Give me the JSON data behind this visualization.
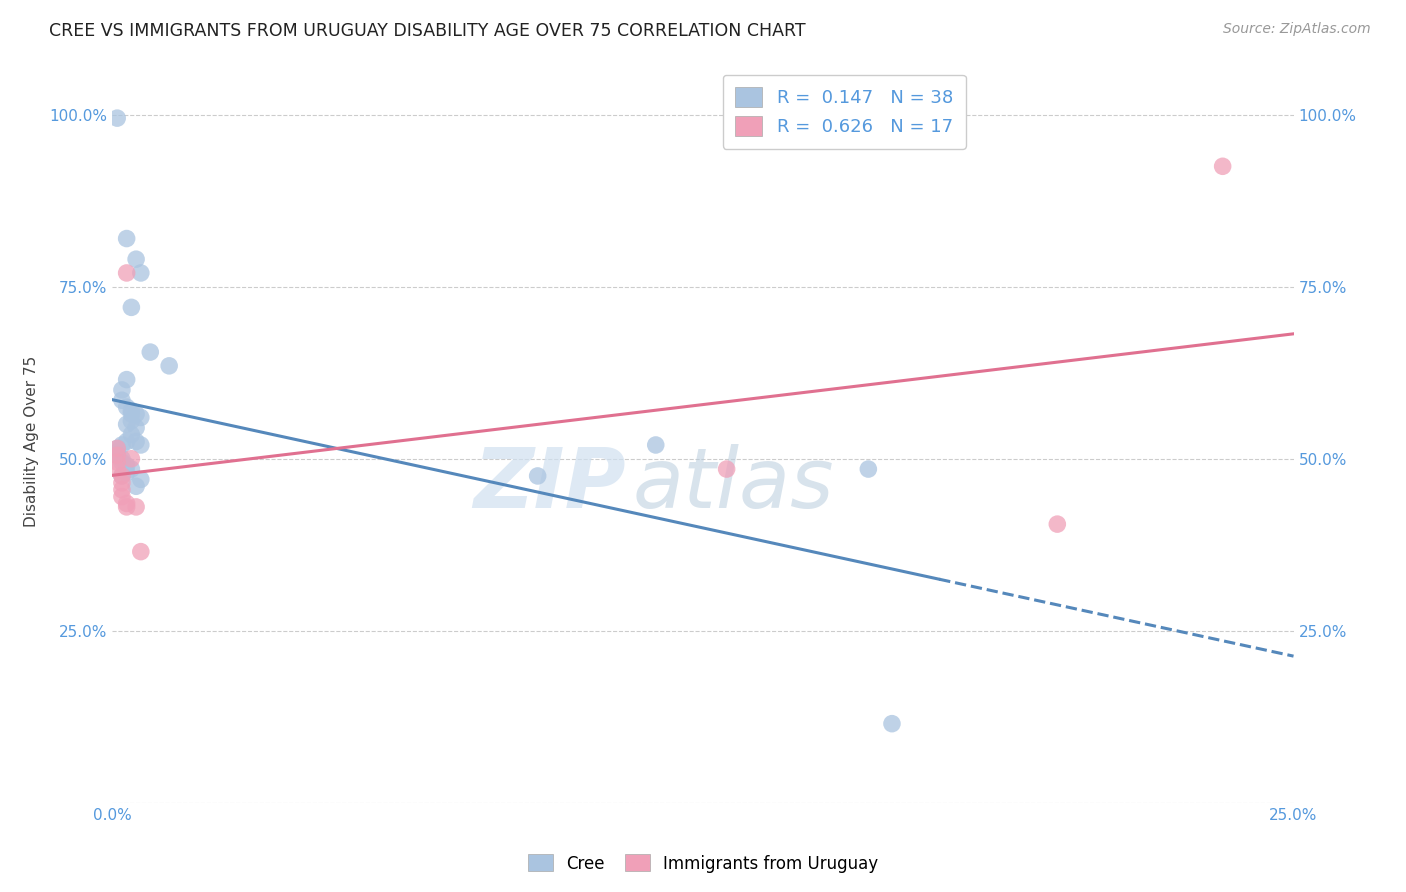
{
  "title": "CREE VS IMMIGRANTS FROM URUGUAY DISABILITY AGE OVER 75 CORRELATION CHART",
  "source": "Source: ZipAtlas.com",
  "ylabel": "Disability Age Over 75",
  "cree_color": "#aac4e0",
  "cree_line_color": "#5588bb",
  "uruguay_color": "#f0a0b8",
  "uruguay_line_color": "#e07090",
  "watermark_zip": "ZIP",
  "watermark_atlas": "atlas",
  "background_color": "#ffffff",
  "grid_color": "#cccccc",
  "cree_R": 0.147,
  "cree_N": 38,
  "uruguay_R": 0.626,
  "uruguay_N": 17,
  "xlim": [
    0,
    0.25
  ],
  "ylim": [
    0,
    1.05
  ],
  "yticks": [
    0.0,
    0.25,
    0.5,
    0.75,
    1.0
  ],
  "ytick_labels": [
    "",
    "25.0%",
    "50.0%",
    "75.0%",
    "100.0%"
  ],
  "xtick_positions": [
    0.0,
    0.25
  ],
  "xtick_labels": [
    "0.0%",
    "25.0%"
  ],
  "cree_points": [
    [
      0.001,
      0.995
    ],
    [
      0.003,
      0.82
    ],
    [
      0.005,
      0.79
    ],
    [
      0.006,
      0.77
    ],
    [
      0.004,
      0.72
    ],
    [
      0.008,
      0.655
    ],
    [
      0.012,
      0.635
    ],
    [
      0.003,
      0.615
    ],
    [
      0.002,
      0.6
    ],
    [
      0.002,
      0.585
    ],
    [
      0.003,
      0.575
    ],
    [
      0.004,
      0.57
    ],
    [
      0.004,
      0.565
    ],
    [
      0.005,
      0.565
    ],
    [
      0.006,
      0.56
    ],
    [
      0.004,
      0.555
    ],
    [
      0.003,
      0.55
    ],
    [
      0.005,
      0.545
    ],
    [
      0.004,
      0.535
    ],
    [
      0.003,
      0.525
    ],
    [
      0.005,
      0.525
    ],
    [
      0.006,
      0.52
    ],
    [
      0.002,
      0.52
    ],
    [
      0.001,
      0.515
    ],
    [
      0.001,
      0.51
    ],
    [
      0.001,
      0.505
    ],
    [
      0.002,
      0.5
    ],
    [
      0.002,
      0.495
    ],
    [
      0.003,
      0.49
    ],
    [
      0.004,
      0.485
    ],
    [
      0.003,
      0.48
    ],
    [
      0.002,
      0.475
    ],
    [
      0.006,
      0.47
    ],
    [
      0.005,
      0.46
    ],
    [
      0.09,
      0.475
    ],
    [
      0.115,
      0.52
    ],
    [
      0.16,
      0.485
    ],
    [
      0.165,
      0.115
    ]
  ],
  "uruguay_points": [
    [
      0.001,
      0.515
    ],
    [
      0.001,
      0.505
    ],
    [
      0.001,
      0.495
    ],
    [
      0.001,
      0.485
    ],
    [
      0.002,
      0.475
    ],
    [
      0.002,
      0.465
    ],
    [
      0.002,
      0.455
    ],
    [
      0.002,
      0.445
    ],
    [
      0.003,
      0.435
    ],
    [
      0.003,
      0.43
    ],
    [
      0.003,
      0.77
    ],
    [
      0.004,
      0.5
    ],
    [
      0.005,
      0.43
    ],
    [
      0.006,
      0.365
    ],
    [
      0.13,
      0.485
    ],
    [
      0.2,
      0.405
    ],
    [
      0.235,
      0.925
    ]
  ],
  "cree_line_solid_end": 0.175,
  "cree_line_dashed_end": 0.25
}
